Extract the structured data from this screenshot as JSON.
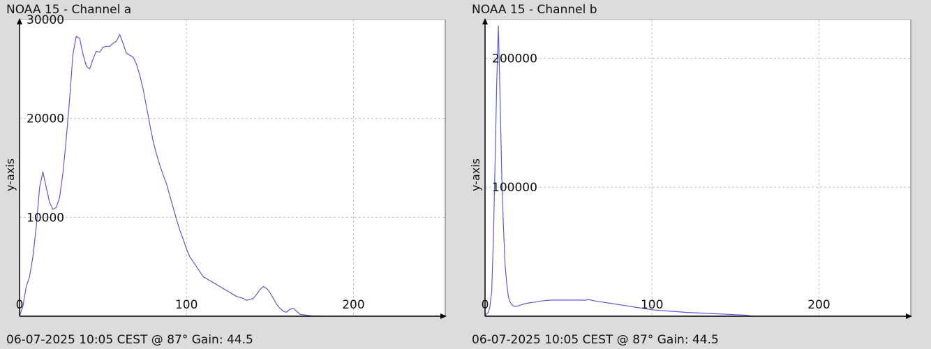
{
  "chart_data": [
    {
      "type": "line",
      "title": "NOAA 15 - Channel a",
      "footer": "06-07-2025 10:05 CEST @ 87° Gain: 44.5",
      "xlabel": "",
      "ylabel": "y-axis",
      "xlim": [
        0,
        255
      ],
      "ylim": [
        0,
        30000
      ],
      "xticks": [
        0,
        100,
        200
      ],
      "yticks": [
        10000,
        20000,
        30000
      ],
      "grid": true,
      "line_color": "#5a5ad6",
      "series": [
        {
          "x": [
            0,
            2,
            4,
            6,
            8,
            10,
            12,
            14,
            16,
            18,
            20,
            22,
            24,
            26,
            28,
            30,
            32,
            34,
            36,
            38,
            40,
            42,
            44,
            46,
            48,
            50,
            52,
            54,
            56,
            58,
            60,
            62,
            64,
            66,
            68,
            70,
            72,
            74,
            76,
            78,
            80,
            82,
            84,
            86,
            88,
            90,
            92,
            94,
            96,
            98,
            100,
            102,
            104,
            106,
            108,
            110,
            112,
            114,
            116,
            118,
            120,
            122,
            124,
            126,
            128,
            130,
            132,
            134,
            136,
            138,
            140,
            142,
            144,
            146,
            148,
            150,
            152,
            154,
            156,
            158,
            160,
            162,
            164,
            166,
            168,
            170,
            172,
            174,
            176,
            178,
            180
          ],
          "y": [
            0,
            1000,
            3000,
            4000,
            6000,
            9000,
            13000,
            14600,
            13000,
            11500,
            10800,
            11000,
            12000,
            14500,
            18000,
            22000,
            26500,
            28300,
            28100,
            26500,
            25300,
            25000,
            26000,
            26800,
            26700,
            27200,
            27300,
            27300,
            27600,
            27800,
            28500,
            27600,
            26600,
            26400,
            26200,
            25500,
            24400,
            23000,
            21200,
            19400,
            17700,
            16400,
            15300,
            14300,
            13400,
            12200,
            11000,
            9800,
            8700,
            7800,
            6800,
            6000,
            5500,
            5000,
            4500,
            4000,
            3800,
            3600,
            3400,
            3200,
            3000,
            2800,
            2600,
            2400,
            2200,
            2000,
            1900,
            1800,
            1600,
            1700,
            1800,
            2200,
            2700,
            3000,
            2800,
            2400,
            1800,
            1200,
            800,
            500,
            400,
            700,
            800,
            500,
            200,
            150,
            100,
            50,
            20,
            10,
            0
          ]
        }
      ]
    },
    {
      "type": "line",
      "title": "NOAA 15 - Channel b",
      "footer": "06-07-2025 10:05 CEST @ 87° Gain: 44.5",
      "xlabel": "",
      "ylabel": "y-axis",
      "xlim": [
        0,
        255
      ],
      "ylim": [
        0,
        230000
      ],
      "xticks": [
        0,
        100,
        200
      ],
      "yticks": [
        100000,
        200000
      ],
      "grid": true,
      "line_color": "#5a5ad6",
      "series": [
        {
          "x": [
            0,
            1,
            2,
            3,
            4,
            5,
            6,
            7,
            8,
            9,
            10,
            11,
            12,
            13,
            14,
            15,
            16,
            17,
            18,
            20,
            22,
            25,
            30,
            35,
            40,
            45,
            50,
            55,
            60,
            62,
            65,
            70,
            75,
            80,
            85,
            90,
            95,
            100,
            105,
            110,
            115,
            120,
            125,
            130,
            135,
            140,
            145,
            150,
            155,
            160
          ],
          "y": [
            0,
            2000,
            3000,
            8000,
            20000,
            60000,
            120000,
            180000,
            225000,
            170000,
            110000,
            70000,
            40000,
            25000,
            15000,
            11000,
            9000,
            8000,
            7500,
            8000,
            9000,
            10000,
            11000,
            12000,
            12500,
            12500,
            12500,
            12500,
            12400,
            13000,
            12000,
            11000,
            10000,
            9000,
            8000,
            7000,
            6000,
            5000,
            4500,
            4000,
            3500,
            3000,
            2700,
            2400,
            2100,
            1800,
            1500,
            1200,
            900,
            0
          ]
        }
      ]
    }
  ]
}
